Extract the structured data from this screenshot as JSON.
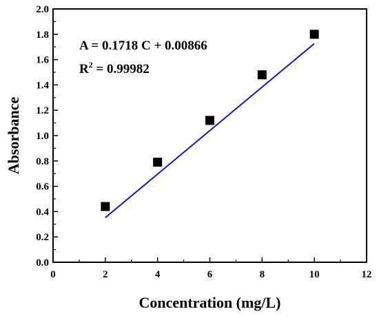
{
  "chart_data": {
    "type": "scatter",
    "xlabel": "Concentration (mg/L)",
    "ylabel": "Absorbance",
    "xlim": [
      0,
      12
    ],
    "ylim": [
      0,
      2.0
    ],
    "xticks": [
      "0",
      "2",
      "4",
      "6",
      "8",
      "10",
      "12"
    ],
    "yticks": [
      "0.0",
      "0.2",
      "0.4",
      "0.6",
      "0.8",
      "1.0",
      "1.2",
      "1.4",
      "1.6",
      "1.8",
      "2.0"
    ],
    "grid": false,
    "points": [
      {
        "x": 2,
        "y": 0.44
      },
      {
        "x": 4,
        "y": 0.79
      },
      {
        "x": 6,
        "y": 1.12
      },
      {
        "x": 8,
        "y": 1.48
      },
      {
        "x": 10,
        "y": 1.8
      }
    ],
    "fit": {
      "slope": 0.1718,
      "intercept": 0.00866,
      "x_range": [
        2,
        10
      ]
    },
    "annotations": {
      "equation": "A  = 0.1718 C + 0.00866",
      "r2_prefix": "R",
      "r2_sup": "2",
      "r2_value": " = 0.99982"
    },
    "colors": {
      "fit_line": "#1a1aa0",
      "marker": "#000000",
      "axis": "#000000"
    }
  }
}
